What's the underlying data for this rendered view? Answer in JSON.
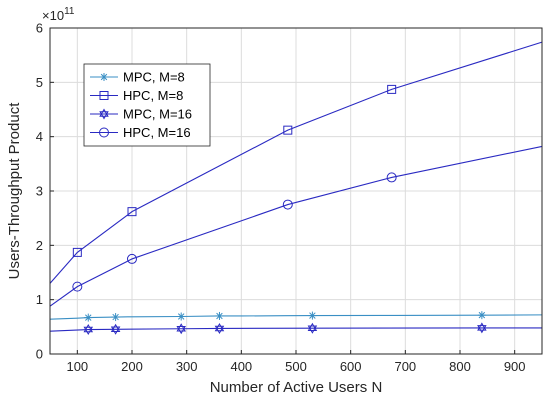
{
  "chart_data": {
    "type": "line",
    "title": "",
    "xlabel": "Number of Active Users N",
    "ylabel": "Users-Throughput Product",
    "xlim": [
      50,
      950
    ],
    "ylim": [
      0,
      6
    ],
    "y_multiplier_label": "×10",
    "y_multiplier_exp": "11",
    "xticks": [
      100,
      200,
      300,
      400,
      500,
      600,
      700,
      800,
      900
    ],
    "yticks": [
      0,
      1,
      2,
      3,
      4,
      5,
      6
    ],
    "grid": true,
    "legend_position": "upper-left",
    "series": [
      {
        "name": "MPC, M=8",
        "color": "#3a8fc4",
        "marker": "asterisk",
        "x": [
          50,
          100,
          120,
          170,
          200,
          290,
          360,
          400,
          480,
          530,
          680,
          840,
          950
        ],
        "y": [
          0.64,
          0.66,
          0.67,
          0.68,
          0.685,
          0.69,
          0.7,
          0.7,
          0.705,
          0.707,
          0.71,
          0.715,
          0.72
        ],
        "marker_x": [
          120,
          170,
          290,
          360,
          530,
          840
        ],
        "marker_y": [
          0.67,
          0.68,
          0.69,
          0.7,
          0.707,
          0.715
        ]
      },
      {
        "name": "HPC, M=8",
        "color": "#2a2ac2",
        "marker": "square",
        "x": [
          50,
          100,
          200,
          485,
          675,
          950
        ],
        "y": [
          1.3,
          1.87,
          2.62,
          4.12,
          4.87,
          5.74
        ],
        "marker_x": [
          100,
          200,
          485,
          675
        ],
        "marker_y": [
          1.87,
          2.62,
          4.12,
          4.87
        ]
      },
      {
        "name": "MPC, M=16",
        "color": "#2a2ac2",
        "marker": "hexagram",
        "x": [
          50,
          120,
          170,
          290,
          360,
          530,
          840,
          950
        ],
        "y": [
          0.42,
          0.45,
          0.455,
          0.465,
          0.47,
          0.475,
          0.48,
          0.48
        ],
        "marker_x": [
          120,
          170,
          290,
          360,
          530,
          840
        ],
        "marker_y": [
          0.45,
          0.455,
          0.465,
          0.47,
          0.475,
          0.48
        ]
      },
      {
        "name": "HPC, M=16",
        "color": "#2a2ac2",
        "marker": "circle",
        "x": [
          50,
          100,
          200,
          485,
          675,
          950
        ],
        "y": [
          0.88,
          1.24,
          1.75,
          2.75,
          3.25,
          3.82
        ],
        "marker_x": [
          100,
          200,
          485,
          675
        ],
        "marker_y": [
          1.24,
          1.75,
          2.75,
          3.25
        ]
      }
    ]
  }
}
